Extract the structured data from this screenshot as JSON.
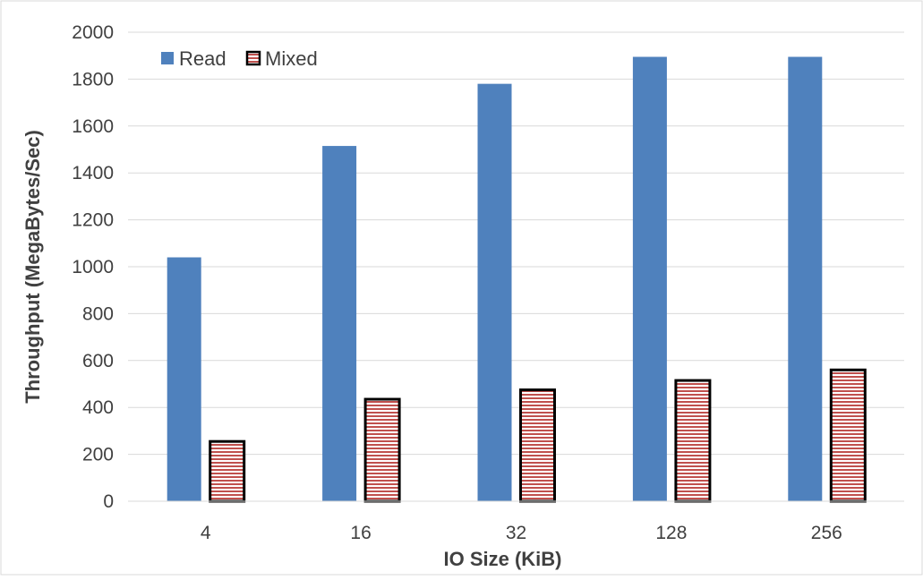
{
  "chart_data": {
    "type": "bar",
    "title": "",
    "xlabel": "IO Size (KiB)",
    "ylabel": "Throughput (MegaBytes/Sec)",
    "categories": [
      "4",
      "16",
      "32",
      "128",
      "256"
    ],
    "series": [
      {
        "name": "Read",
        "values": [
          1040,
          1515,
          1780,
          1895,
          1895
        ],
        "color": "#4f81bd",
        "pattern": "solid"
      },
      {
        "name": "Mixed",
        "values": [
          255,
          435,
          475,
          515,
          560
        ],
        "color": "#c0504d",
        "pattern": "horizontal-stripes"
      }
    ],
    "ylim": [
      0,
      2000
    ],
    "yticks": [
      "0",
      "200",
      "400",
      "600",
      "800",
      "1000",
      "1200",
      "1400",
      "1600",
      "1800",
      "2000"
    ],
    "grid": true,
    "legend_position": "top-left"
  }
}
